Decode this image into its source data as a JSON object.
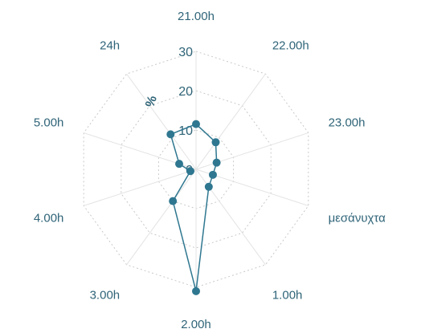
{
  "chart_data": {
    "type": "radar",
    "categories": [
      "21.00h",
      "22.00h",
      "23.00h",
      "μεσάνυχτα",
      "1.00h",
      "2.00h",
      "3.00h",
      "4.00h",
      "5.00h",
      "24h"
    ],
    "series": [
      {
        "values": [
          11.5,
          8.5,
          5.5,
          4.5,
          5.5,
          31,
          10,
          1.5,
          4.5,
          11
        ]
      }
    ],
    "rlim": [
      0,
      30
    ],
    "ticks": [
      "0",
      "10",
      "20",
      "30"
    ],
    "unit_label": "%",
    "grid": true,
    "colors": {
      "series": "#2f7790",
      "grid": "#c9c9c9",
      "text": "#2f6478"
    }
  }
}
